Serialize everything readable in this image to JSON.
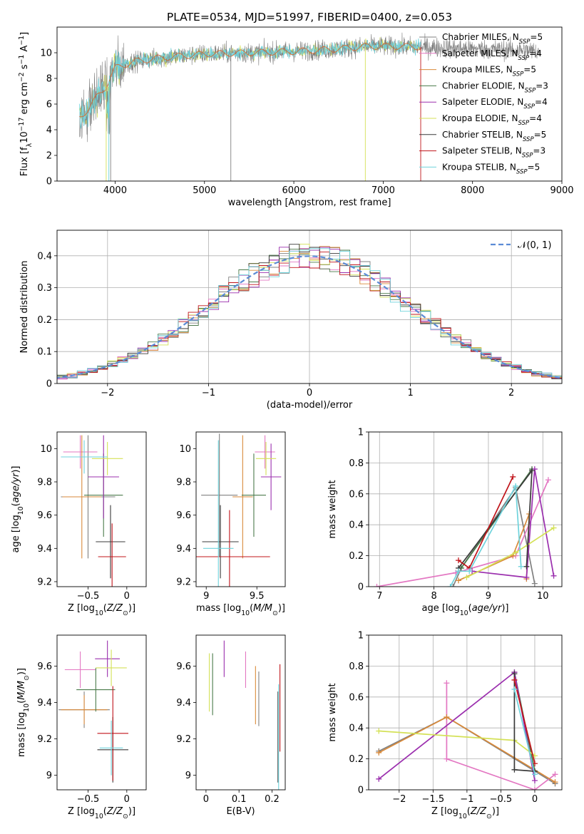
{
  "figure_title": "PLATE=0534, MJD=51997, FIBERID=0400, z=0.053",
  "colors": {
    "Chabrier MILES": "#808080",
    "Salpeter MILES": "#e377c2",
    "Kroupa MILES": "#d98a3a",
    "Chabrier ELODIE": "#4a7a4a",
    "Salpeter ELODIE": "#9b2fae",
    "Kroupa ELODIE": "#d4e157",
    "Chabrier STELIB": "#3a3a3a",
    "Salpeter STELIB": "#c0141a",
    "Kroupa STELIB": "#6fd3dc",
    "gaussian": "#5b8bd6"
  },
  "legend_models": [
    {
      "name": "Chabrier MILES",
      "nssp": "5"
    },
    {
      "name": "Salpeter MILES",
      "nssp": "4"
    },
    {
      "name": "Kroupa MILES",
      "nssp": "5"
    },
    {
      "name": "Chabrier ELODIE",
      "nssp": "3"
    },
    {
      "name": "Salpeter ELODIE",
      "nssp": "4"
    },
    {
      "name": "Kroupa ELODIE",
      "nssp": "4"
    },
    {
      "name": "Chabrier STELIB",
      "nssp": "5"
    },
    {
      "name": "Salpeter STELIB",
      "nssp": "3"
    },
    {
      "name": "Kroupa STELIB",
      "nssp": "5"
    }
  ],
  "chart_data": [
    {
      "id": "spectrum",
      "type": "line",
      "xlabel": "wavelength [Angstrom, rest frame]",
      "ylabel": "Flux [f_λ10^-17 erg cm^-2 s^-1 A^-1]",
      "xlim": [
        3350,
        9000
      ],
      "ylim": [
        0,
        12
      ],
      "xticks": [
        4000,
        5000,
        6000,
        7000,
        8000,
        9000
      ],
      "yticks": [
        0,
        2,
        4,
        6,
        8,
        10
      ],
      "continuum": [
        [
          3600,
          5.0
        ],
        [
          3700,
          5.6
        ],
        [
          3800,
          6.6
        ],
        [
          3900,
          7.4
        ],
        [
          4000,
          8.8
        ],
        [
          4200,
          9.3
        ],
        [
          4500,
          9.6
        ],
        [
          5000,
          9.9
        ],
        [
          5500,
          10.0
        ],
        [
          6000,
          10.1
        ],
        [
          6500,
          10.3
        ],
        [
          6800,
          10.5
        ],
        [
          7200,
          10.5
        ],
        [
          7600,
          10.4
        ],
        [
          8000,
          10.3
        ],
        [
          8500,
          10.2
        ],
        [
          8750,
          10.1
        ]
      ],
      "legend_position": "right"
    },
    {
      "id": "residuals",
      "type": "line",
      "xlabel": "(data-model)/error",
      "ylabel": "Normed distribution",
      "xlim": [
        -2.5,
        2.5
      ],
      "ylim": [
        0,
        0.48
      ],
      "xticks": [
        -2,
        -1,
        0,
        1,
        2
      ],
      "yticks": [
        0.0,
        0.1,
        0.2,
        0.3,
        0.4
      ],
      "gaussian_label": "𝒩(0, 1)",
      "bin_width": 0.1,
      "grid": true,
      "legend_position": "upper right"
    },
    {
      "id": "age-vs-Z",
      "type": "scatter",
      "xlabel": "Z [log10(Z/Z☉)]",
      "ylabel": "age  [log10(age/yr)]",
      "xlim": [
        -0.9,
        0.25
      ],
      "ylim": [
        9.17,
        10.1
      ],
      "xticks": [
        -0.5,
        0.0
      ],
      "yticks": [
        9.2,
        9.4,
        9.6,
        9.8,
        10.0
      ],
      "points": [
        {
          "model": "Chabrier MILES",
          "x": -0.5,
          "y": 9.71,
          "xerr": 0.35,
          "yerr": 0.37
        },
        {
          "model": "Salpeter MILES",
          "x": -0.6,
          "y": 9.98,
          "xerr": 0.22,
          "yerr": 0.1
        },
        {
          "model": "Kroupa MILES",
          "x": -0.58,
          "y": 9.71,
          "xerr": 0.25,
          "yerr": 0.37
        },
        {
          "model": "Chabrier ELODIE",
          "x": -0.3,
          "y": 9.72,
          "xerr": 0.25,
          "yerr": 0.25
        },
        {
          "model": "Salpeter ELODIE",
          "x": -0.3,
          "y": 9.83,
          "xerr": 0.2,
          "yerr": 0.25
        },
        {
          "model": "Kroupa ELODIE",
          "x": -0.25,
          "y": 9.94,
          "xerr": 0.2,
          "yerr": 0.1
        },
        {
          "model": "Chabrier STELIB",
          "x": -0.21,
          "y": 9.44,
          "xerr": 0.19,
          "yerr": 0.22
        },
        {
          "model": "Salpeter STELIB",
          "x": -0.19,
          "y": 9.35,
          "xerr": 0.18,
          "yerr": 0.2
        },
        {
          "model": "Kroupa STELIB",
          "x": -0.55,
          "y": 9.95,
          "xerr": 0.3,
          "yerr": 0.1
        }
      ]
    },
    {
      "id": "age-vs-mass",
      "type": "scatter",
      "xlabel": "mass [log10(M/M☉)]",
      "ylabel": "",
      "xlim": [
        8.9,
        9.78
      ],
      "ylim": [
        9.17,
        10.1
      ],
      "xticks": [
        9.0,
        9.5
      ],
      "yticks": [
        9.2,
        9.4,
        9.6,
        9.8,
        10.0
      ],
      "points": [
        {
          "model": "Chabrier MILES",
          "x": 9.13,
          "y": 9.72,
          "xerr": 0.18,
          "yerr": 0.37
        },
        {
          "model": "Salpeter MILES",
          "x": 9.58,
          "y": 9.98,
          "xerr": 0.1,
          "yerr": 0.1
        },
        {
          "model": "Kroupa MILES",
          "x": 9.36,
          "y": 9.71,
          "xerr": 0.1,
          "yerr": 0.37
        },
        {
          "model": "Chabrier ELODIE",
          "x": 9.47,
          "y": 9.72,
          "xerr": 0.12,
          "yerr": 0.25
        },
        {
          "model": "Salpeter ELODIE",
          "x": 9.64,
          "y": 9.83,
          "xerr": 0.1,
          "yerr": 0.2
        },
        {
          "model": "Kroupa ELODIE",
          "x": 9.59,
          "y": 9.94,
          "xerr": 0.1,
          "yerr": 0.1
        },
        {
          "model": "Chabrier STELIB",
          "x": 9.14,
          "y": 9.44,
          "xerr": 0.18,
          "yerr": 0.22
        },
        {
          "model": "Salpeter STELIB",
          "x": 9.23,
          "y": 9.35,
          "xerr": 0.4,
          "yerr": 0.28
        },
        {
          "model": "Kroupa STELIB",
          "x": 9.12,
          "y": 9.4,
          "xerr": 0.15,
          "yerr": 0.65
        }
      ]
    },
    {
      "id": "mass-weight-vs-age",
      "type": "line",
      "xlabel": "age  [log10(age/yr)]",
      "ylabel": "mass weight",
      "xlim": [
        6.8,
        10.35
      ],
      "ylim": [
        0,
        1.0
      ],
      "xticks": [
        7,
        8,
        9,
        10
      ],
      "yticks": [
        0.0,
        0.2,
        0.4,
        0.6,
        0.8,
        1.0
      ],
      "grid": true,
      "series": [
        {
          "model": "Chabrier MILES",
          "points": [
            [
              8.35,
              0.0
            ],
            [
              8.5,
              0.12
            ],
            [
              9.5,
              0.64
            ],
            [
              9.85,
              0.02
            ]
          ]
        },
        {
          "model": "Salpeter MILES",
          "points": [
            [
              6.95,
              0.0
            ],
            [
              8.4,
              0.09
            ],
            [
              9.5,
              0.2
            ],
            [
              10.1,
              0.69
            ]
          ]
        },
        {
          "model": "Kroupa MILES",
          "points": [
            [
              8.45,
              0.04
            ],
            [
              9.45,
              0.2
            ],
            [
              9.75,
              0.47
            ],
            [
              9.7,
              0.05
            ]
          ]
        },
        {
          "model": "Chabrier ELODIE",
          "points": [
            [
              8.5,
              0.12
            ],
            [
              9.8,
              0.76
            ]
          ]
        },
        {
          "model": "Salpeter ELODIE",
          "points": [
            [
              8.7,
              0.1
            ],
            [
              9.7,
              0.06
            ],
            [
              9.85,
              0.76
            ],
            [
              10.2,
              0.07
            ]
          ]
        },
        {
          "model": "Kroupa ELODIE",
          "points": [
            [
              8.6,
              0.06
            ],
            [
              9.5,
              0.22
            ],
            [
              10.2,
              0.38
            ]
          ]
        },
        {
          "model": "Chabrier STELIB",
          "points": [
            [
              8.45,
              0.12
            ],
            [
              9.8,
              0.75
            ],
            [
              9.7,
              0.13
            ]
          ]
        },
        {
          "model": "Salpeter STELIB",
          "points": [
            [
              8.45,
              0.17
            ],
            [
              8.65,
              0.12
            ],
            [
              9.45,
              0.71
            ]
          ]
        },
        {
          "model": "Kroupa STELIB",
          "points": [
            [
              8.3,
              0.0
            ],
            [
              8.45,
              0.1
            ],
            [
              8.65,
              0.1
            ],
            [
              9.5,
              0.65
            ],
            [
              9.6,
              0.13
            ]
          ]
        }
      ]
    },
    {
      "id": "mass-vs-Z",
      "type": "scatter",
      "xlabel": "Z [log10(Z/Z☉)]",
      "ylabel": "mass [log10(M/M☉)]",
      "xlim": [
        -0.9,
        0.25
      ],
      "ylim": [
        8.92,
        9.77
      ],
      "xticks": [
        -0.5,
        0.0
      ],
      "yticks": [
        9.0,
        9.2,
        9.4,
        9.6
      ],
      "points": [
        {
          "model": "Chabrier MILES",
          "x": -0.55,
          "y": 9.36,
          "xerr": 0.33,
          "yerr": 0.1
        },
        {
          "model": "Salpeter MILES",
          "x": -0.6,
          "y": 9.58,
          "xerr": 0.2,
          "yerr": 0.1
        },
        {
          "model": "Kroupa MILES",
          "x": -0.55,
          "y": 9.36,
          "xerr": 0.3,
          "yerr": 0.08
        },
        {
          "model": "Chabrier ELODIE",
          "x": -0.4,
          "y": 9.47,
          "xerr": 0.25,
          "yerr": 0.12
        },
        {
          "model": "Salpeter ELODIE",
          "x": -0.25,
          "y": 9.64,
          "xerr": 0.16,
          "yerr": 0.1
        },
        {
          "model": "Kroupa ELODIE",
          "x": -0.2,
          "y": 9.59,
          "xerr": 0.2,
          "yerr": 0.1
        },
        {
          "model": "Chabrier STELIB",
          "x": -0.18,
          "y": 9.14,
          "xerr": 0.2,
          "yerr": 0.18
        },
        {
          "model": "Salpeter STELIB",
          "x": -0.18,
          "y": 9.23,
          "xerr": 0.2,
          "yerr": 0.26
        },
        {
          "model": "Kroupa STELIB",
          "x": -0.2,
          "y": 9.15,
          "xerr": 0.15,
          "yerr": 0.15
        }
      ]
    },
    {
      "id": "mass-vs-EBV",
      "type": "scatter",
      "xlabel": "E(B-V)",
      "ylabel": "",
      "xlim": [
        -0.03,
        0.24
      ],
      "ylim": [
        8.92,
        9.77
      ],
      "xticks": [
        0.0,
        0.1,
        0.2
      ],
      "yticks": [
        9.0,
        9.2,
        9.4,
        9.6
      ],
      "points": [
        {
          "model": "Chabrier MILES",
          "x": 0.16,
          "y": 9.42,
          "yerr": 0.15
        },
        {
          "model": "Salpeter MILES",
          "x": 0.12,
          "y": 9.58,
          "yerr": 0.1
        },
        {
          "model": "Kroupa MILES",
          "x": 0.15,
          "y": 9.44,
          "yerr": 0.16
        },
        {
          "model": "Chabrier ELODIE",
          "x": 0.02,
          "y": 9.5,
          "yerr": 0.17
        },
        {
          "model": "Salpeter ELODIE",
          "x": 0.055,
          "y": 9.64,
          "yerr": 0.1
        },
        {
          "model": "Kroupa ELODIE",
          "x": 0.01,
          "y": 9.51,
          "yerr": 0.16
        },
        {
          "model": "Chabrier STELIB",
          "x": 0.218,
          "y": 9.21,
          "yerr": 0.25
        },
        {
          "model": "Salpeter STELIB",
          "x": 0.224,
          "y": 9.37,
          "yerr": 0.24
        },
        {
          "model": "Kroupa STELIB",
          "x": 0.22,
          "y": 9.2,
          "yerr": 0.3
        }
      ]
    },
    {
      "id": "mass-weight-vs-Z",
      "type": "line",
      "xlabel": "Z [log10(Z/Z☉)]",
      "ylabel": "mass weight",
      "xlim": [
        -2.45,
        0.4
      ],
      "ylim": [
        0,
        1.0
      ],
      "xticks": [
        -2.0,
        -1.5,
        -1.0,
        -0.5,
        0.0
      ],
      "yticks": [
        0.0,
        0.2,
        0.4,
        0.6,
        0.8,
        1.0
      ],
      "grid": true,
      "series": [
        {
          "model": "Chabrier MILES",
          "points": [
            [
              -2.3,
              0.25
            ],
            [
              -1.3,
              0.47
            ],
            [
              0.3,
              0.04
            ]
          ]
        },
        {
          "model": "Salpeter MILES",
          "points": [
            [
              -1.3,
              0.69
            ],
            [
              -1.3,
              0.2
            ],
            [
              0.0,
              0.0
            ],
            [
              0.3,
              0.1
            ]
          ]
        },
        {
          "model": "Kroupa MILES",
          "points": [
            [
              -2.3,
              0.24
            ],
            [
              -1.3,
              0.47
            ],
            [
              0.3,
              0.05
            ]
          ]
        },
        {
          "model": "Chabrier ELODIE",
          "points": [
            [
              -0.3,
              0.76
            ],
            [
              0.0,
              0.12
            ]
          ]
        },
        {
          "model": "Salpeter ELODIE",
          "points": [
            [
              -2.3,
              0.07
            ],
            [
              -0.3,
              0.76
            ],
            [
              0.0,
              0.06
            ]
          ]
        },
        {
          "model": "Kroupa ELODIE",
          "points": [
            [
              -2.3,
              0.38
            ],
            [
              -0.3,
              0.32
            ],
            [
              0.0,
              0.22
            ]
          ]
        },
        {
          "model": "Chabrier STELIB",
          "points": [
            [
              -0.3,
              0.75
            ],
            [
              -0.3,
              0.13
            ],
            [
              0.0,
              0.12
            ]
          ]
        },
        {
          "model": "Salpeter STELIB",
          "points": [
            [
              -0.3,
              0.71
            ],
            [
              0.0,
              0.17
            ]
          ]
        },
        {
          "model": "Kroupa STELIB",
          "points": [
            [
              -0.3,
              0.65
            ],
            [
              0.0,
              0.1
            ]
          ]
        }
      ]
    }
  ]
}
